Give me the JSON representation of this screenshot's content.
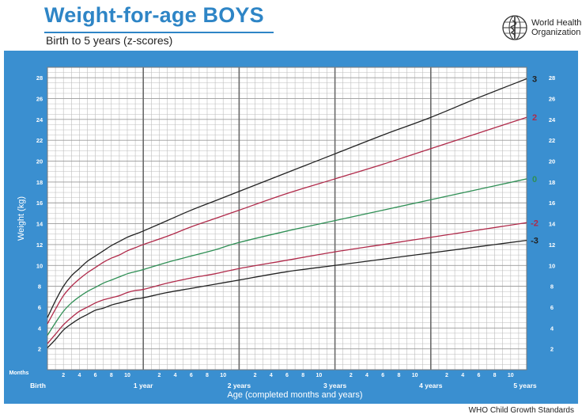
{
  "header": {
    "title": "Weight-for-age BOYS",
    "subtitle": "Birth to 5 years (z-scores)",
    "org_line1": "World Health",
    "org_line2": "Organization",
    "footer": "WHO Child Growth Standards"
  },
  "colors": {
    "frame": "#3a8fd0",
    "grid": "#bdbdbd",
    "year_lines": "#6a6a6a",
    "z3": "#222222",
    "z2": "#b02a4a",
    "z0": "#2f8f55",
    "zm2": "#b02a4a",
    "zm3": "#222222",
    "title": "#2e85c6"
  },
  "chart_data": {
    "type": "line",
    "title": "Weight-for-age BOYS",
    "subtitle": "Birth to 5 years (z-scores)",
    "xlabel": "Age (completed months and years)",
    "ylabel": "Weight (kg)",
    "xlim": [
      0,
      60
    ],
    "ylim": [
      0,
      29
    ],
    "y_ticks": [
      2,
      4,
      6,
      8,
      10,
      12,
      14,
      16,
      18,
      20,
      22,
      24,
      26,
      28
    ],
    "x_month_ticks": [
      2,
      4,
      6,
      8,
      10
    ],
    "x_month_unit_label": "Months",
    "x_year_labels": [
      {
        "x": 0,
        "label": "Birth"
      },
      {
        "x": 12,
        "label": "1 year"
      },
      {
        "x": 24,
        "label": "2 years"
      },
      {
        "x": 36,
        "label": "3 years"
      },
      {
        "x": 48,
        "label": "4 years"
      },
      {
        "x": 60,
        "label": "5 years"
      }
    ],
    "grid": true,
    "x": [
      0,
      1,
      2,
      3,
      4,
      5,
      6,
      7,
      8,
      9,
      10,
      11,
      12,
      15,
      18,
      21,
      24,
      30,
      36,
      42,
      48,
      54,
      60
    ],
    "series": [
      {
        "name": "3",
        "color_key": "z3",
        "values": [
          5.0,
          6.6,
          8.0,
          9.0,
          9.7,
          10.4,
          10.9,
          11.4,
          11.9,
          12.3,
          12.7,
          13.0,
          13.3,
          14.3,
          15.3,
          16.2,
          17.1,
          18.9,
          20.7,
          22.5,
          24.2,
          26.1,
          27.9
        ]
      },
      {
        "name": "2",
        "color_key": "z2",
        "values": [
          4.4,
          5.8,
          7.1,
          8.0,
          8.7,
          9.3,
          9.8,
          10.3,
          10.7,
          11.0,
          11.4,
          11.7,
          12.0,
          12.8,
          13.7,
          14.5,
          15.3,
          16.9,
          18.3,
          19.7,
          21.2,
          22.7,
          24.2
        ]
      },
      {
        "name": "0",
        "color_key": "z0",
        "values": [
          3.3,
          4.5,
          5.6,
          6.4,
          7.0,
          7.5,
          7.9,
          8.3,
          8.6,
          8.9,
          9.2,
          9.4,
          9.6,
          10.3,
          10.9,
          11.5,
          12.2,
          13.3,
          14.3,
          15.3,
          16.3,
          17.3,
          18.3
        ]
      },
      {
        "name": "-2",
        "color_key": "zm2",
        "values": [
          2.5,
          3.4,
          4.3,
          5.0,
          5.6,
          6.0,
          6.4,
          6.7,
          6.9,
          7.1,
          7.4,
          7.6,
          7.7,
          8.3,
          8.8,
          9.2,
          9.7,
          10.5,
          11.3,
          12.0,
          12.7,
          13.4,
          14.1
        ]
      },
      {
        "name": "-3",
        "color_key": "zm3",
        "values": [
          2.1,
          2.9,
          3.8,
          4.4,
          4.9,
          5.3,
          5.7,
          5.9,
          6.2,
          6.4,
          6.6,
          6.8,
          6.9,
          7.4,
          7.8,
          8.2,
          8.6,
          9.4,
          10.0,
          10.6,
          11.2,
          11.8,
          12.4
        ]
      }
    ]
  }
}
